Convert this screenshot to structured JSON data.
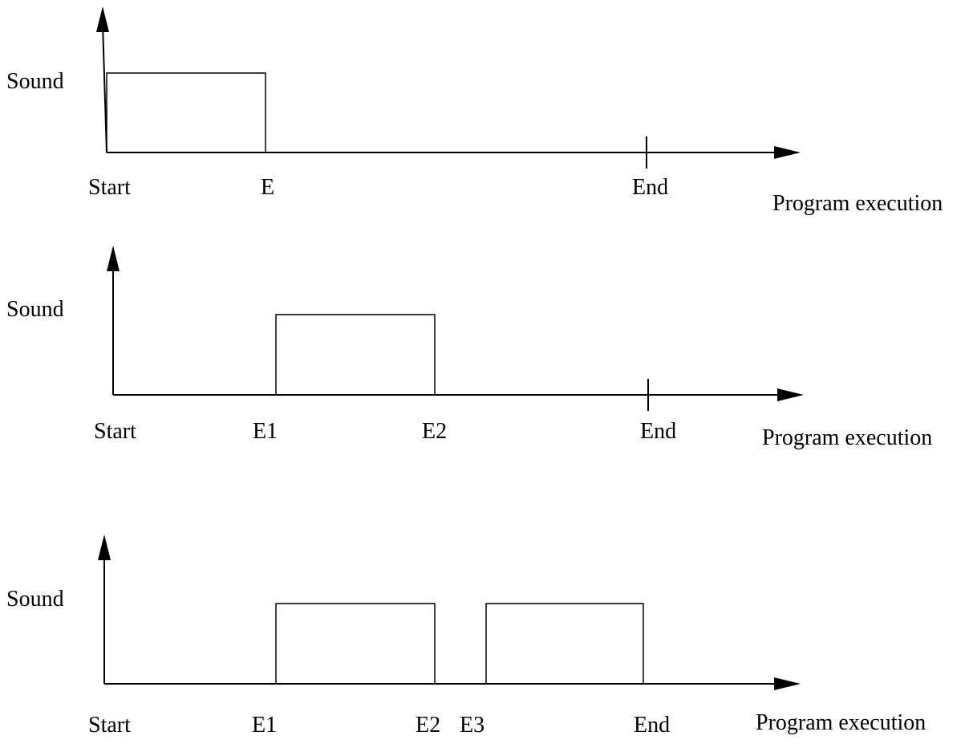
{
  "panels": [
    {
      "y_label": "Sound",
      "x_label": "Program execution",
      "ticks": [
        "Start",
        "E",
        "End"
      ],
      "sound_on_intervals": [
        [
          "Start",
          "E"
        ]
      ]
    },
    {
      "y_label": "Sound",
      "x_label": "Program execution",
      "ticks": [
        "Start",
        "E1",
        "E2",
        "End"
      ],
      "sound_on_intervals": [
        [
          "E1",
          "E2"
        ]
      ]
    },
    {
      "y_label": "Sound",
      "x_label": "Program execution",
      "ticks": [
        "Start",
        "E1",
        "E2",
        "E3",
        "End"
      ],
      "sound_on_intervals": [
        [
          "E1",
          "E2"
        ],
        [
          "E3",
          "End"
        ]
      ]
    }
  ],
  "colors": {
    "line": "#000000",
    "background": "#ffffff"
  }
}
